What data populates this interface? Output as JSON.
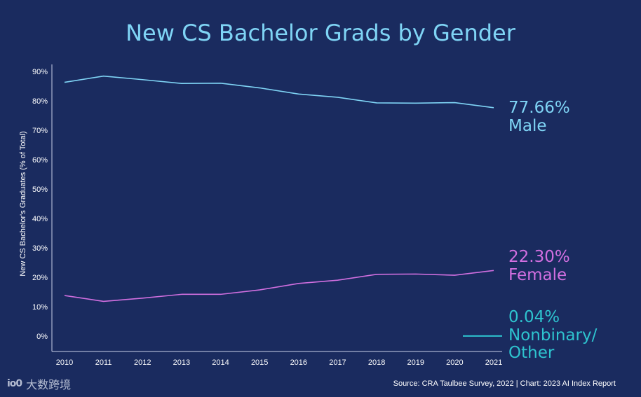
{
  "chart_data": {
    "type": "line",
    "title": "New CS Bachelor Grads by Gender",
    "ylabel": "New CS Bachelor's Graduates (% of Total)",
    "xlabel": "",
    "ylim": [
      0,
      90
    ],
    "grid": false,
    "y_ticks": [
      "0%",
      "10%",
      "20%",
      "30%",
      "40%",
      "50%",
      "60%",
      "70%",
      "80%",
      "90%"
    ],
    "x": [
      "2010",
      "2011",
      "2012",
      "2013",
      "2014",
      "2015",
      "2016",
      "2017",
      "2018",
      "2019",
      "2020",
      "2021"
    ],
    "series": [
      {
        "name": "Male",
        "color": "#7fd4f5",
        "end_label": "77.66%",
        "values": [
          86.3,
          88.4,
          87.2,
          85.9,
          86.0,
          84.4,
          82.3,
          81.2,
          79.3,
          79.2,
          79.4,
          77.66
        ]
      },
      {
        "name": "Female",
        "color": "#d16fe0",
        "end_label": "22.30%",
        "values": [
          13.8,
          11.8,
          12.9,
          14.2,
          14.2,
          15.7,
          17.9,
          19.0,
          21.0,
          21.1,
          20.7,
          22.3
        ]
      },
      {
        "name": "Nonbinary/ Other",
        "color": "#2ec4cf",
        "end_label": "0.04%",
        "values": [
          null,
          null,
          null,
          null,
          null,
          null,
          null,
          null,
          null,
          null,
          0.05,
          0.04
        ]
      }
    ],
    "source": "Source: CRA Taulbee Survey, 2022 | Chart: 2023 AI Index Report"
  },
  "watermark": {
    "logo": "io0",
    "text": "大数跨境"
  }
}
